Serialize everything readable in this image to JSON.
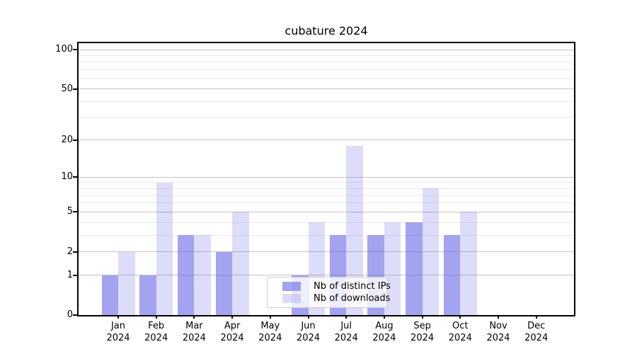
{
  "chart_data": {
    "type": "bar",
    "title": "cubature 2024",
    "categories": [
      "Jan",
      "Feb",
      "Mar",
      "Apr",
      "May",
      "Jun",
      "Jul",
      "Aug",
      "Sep",
      "Oct",
      "Nov",
      "Dec"
    ],
    "year_label": "2024",
    "series": [
      {
        "key": "distinct-ips",
        "name": "Nb of distinct IPs",
        "color": "rgba(102,102,230,0.60)",
        "values": [
          1,
          1,
          3,
          2,
          0,
          1,
          3,
          3,
          4,
          3,
          0,
          0
        ]
      },
      {
        "key": "downloads",
        "name": "Nb of downloads",
        "color": "rgba(102,102,230,0.22)",
        "values": [
          2,
          9,
          3,
          5,
          0,
          4,
          18,
          4,
          8,
          5,
          0,
          0
        ]
      }
    ],
    "yscale": "log1p",
    "ylim": [
      0,
      100
    ],
    "yticks_major": [
      0,
      1,
      2,
      5,
      10,
      20,
      50,
      100
    ],
    "yticks_minor": [
      3,
      4,
      6,
      7,
      8,
      9,
      30,
      40,
      60,
      70,
      80,
      90
    ],
    "grid": true,
    "legend_position": "lower center",
    "colors": {
      "axis": "#000000",
      "grid_major": "#c3c3c3",
      "grid_minor": "#ebebeb",
      "background": "#ffffff"
    }
  }
}
